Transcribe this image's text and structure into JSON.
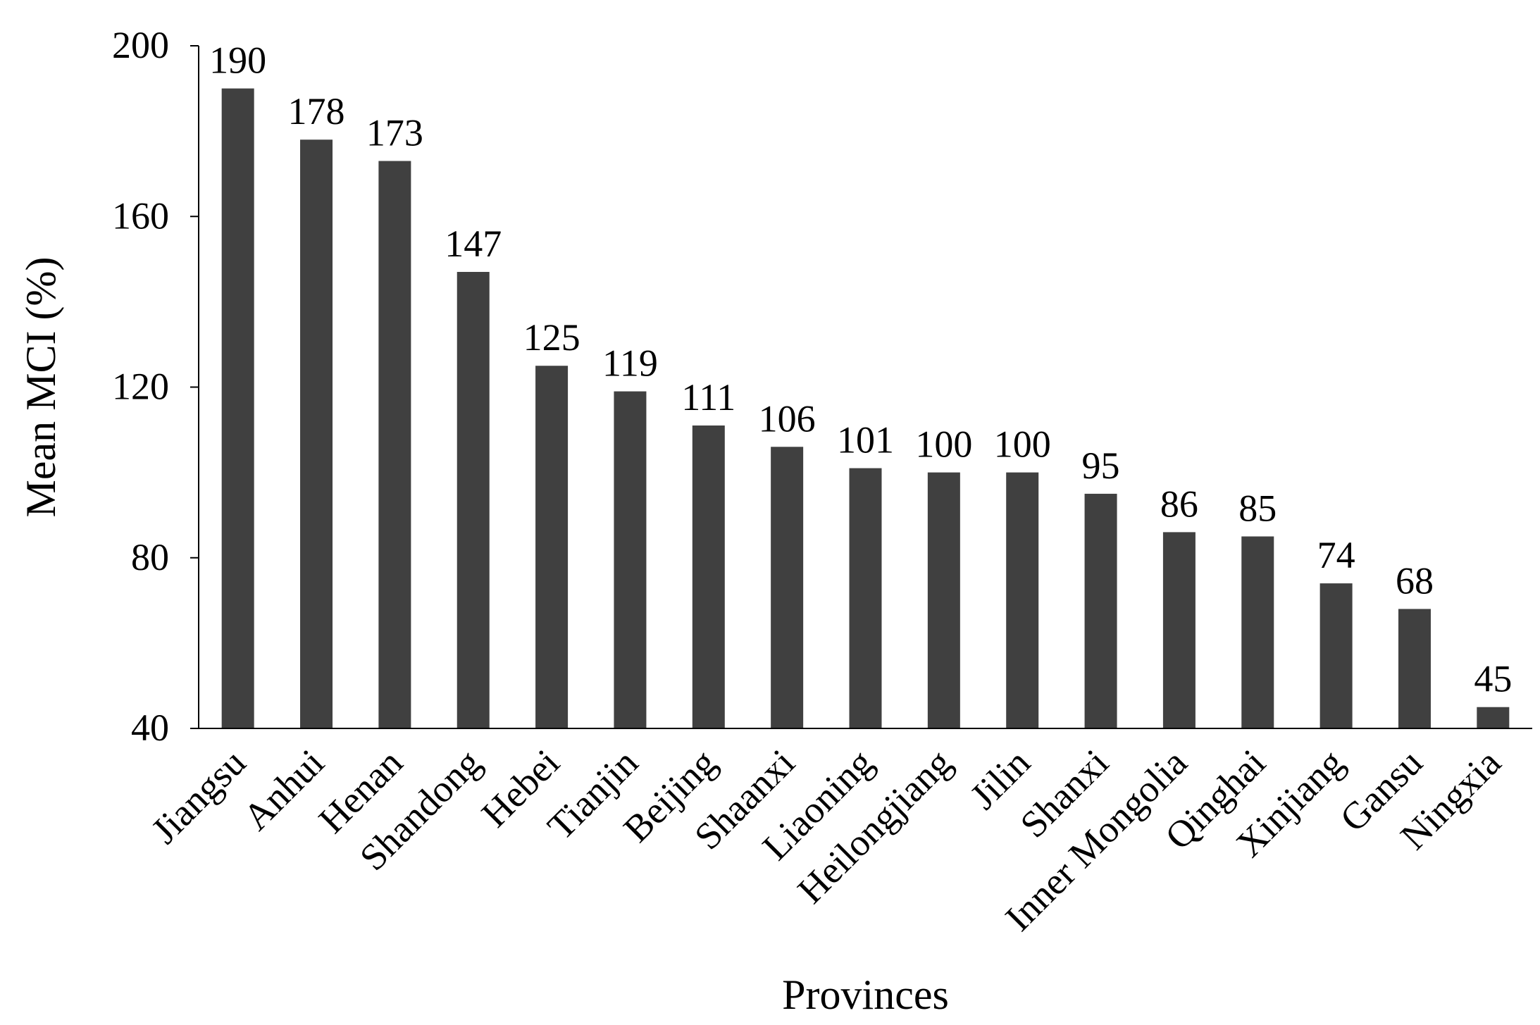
{
  "chart_data": {
    "type": "bar",
    "title": "",
    "xlabel": "Provinces",
    "ylabel": "Mean MCI (%)",
    "ylim": [
      40,
      200
    ],
    "yticks": [
      40,
      80,
      120,
      160,
      200
    ],
    "grid": false,
    "legend": "none",
    "bar_color": "#404040",
    "categories": [
      "Jiangsu",
      "Anhui",
      "Henan",
      "Shandong",
      "Hebei",
      "Tianjin",
      "Beijing",
      "Shaanxi",
      "Liaoning",
      "Heilongjiang",
      "Jilin",
      "Shanxi",
      "Inner Mongolia",
      "Qinghai",
      "Xinjiang",
      "Gansu",
      "Ningxia"
    ],
    "values": [
      190,
      178,
      173,
      147,
      125,
      119,
      111,
      106,
      101,
      100,
      100,
      95,
      86,
      85,
      74,
      68,
      45
    ]
  }
}
